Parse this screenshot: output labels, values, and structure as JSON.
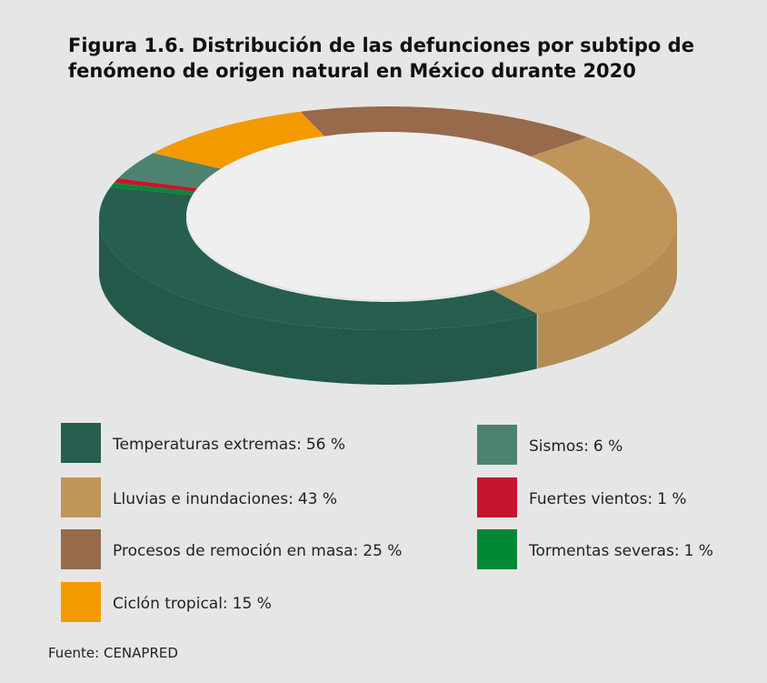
{
  "chart_data": {
    "type": "donut3d",
    "title": "Figura 1.6. Distribución de las defunciones por subtipo de fenómeno de origen natural en México durante 2020",
    "categories": [
      "Temperaturas extremas:",
      "Lluvias e inundaciones:",
      "Procesos de remoción en masa:",
      "Ciclón tropical:",
      "Sismos:",
      "Fuertes vientos:",
      "Tormentas severas:"
    ],
    "values": [
      56,
      43,
      25,
      15,
      6,
      1,
      1
    ],
    "value_labels": [
      "56 %",
      "43 %",
      "25 %",
      "15 %",
      "6 %",
      "1 %",
      "1 %"
    ],
    "colors": [
      "#265e4f",
      "#c0955a",
      "#966a4b",
      "#f39a00",
      "#4e8270",
      "#c4162f",
      "#008837"
    ],
    "source": "Fuente: CENAPRED"
  }
}
